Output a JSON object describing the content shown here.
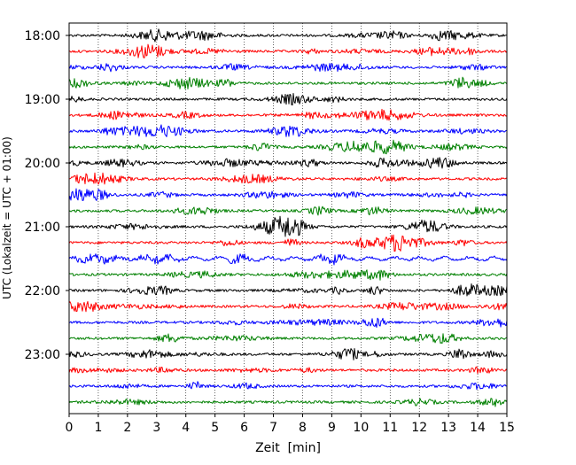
{
  "chart_data": {
    "type": "line",
    "subtype": "helicorder",
    "xlabel": "Zeit  [min]",
    "ylabel": "UTC (Lokalzeit = UTC + 01:00)",
    "xlim": [
      0,
      15
    ],
    "x_ticks": [
      "0",
      "1",
      "2",
      "3",
      "4",
      "5",
      "6",
      "7",
      "8",
      "9",
      "10",
      "11",
      "12",
      "13",
      "14",
      "15"
    ],
    "y_tick_labels": [
      "18:00",
      "19:00",
      "20:00",
      "21:00",
      "22:00",
      "23:00"
    ],
    "traces_per_hour": 4,
    "trace_count": 24,
    "trace_start_times": [
      "18:00",
      "18:15",
      "18:30",
      "18:45",
      "19:00",
      "19:15",
      "19:30",
      "19:45",
      "20:00",
      "20:15",
      "20:30",
      "20:45",
      "21:00",
      "21:15",
      "21:30",
      "21:45",
      "22:00",
      "22:15",
      "22:30",
      "22:45",
      "23:00",
      "23:15",
      "23:30",
      "23:45"
    ],
    "color_cycle": [
      "#000000",
      "#ff0000",
      "#0000ff",
      "#008000"
    ],
    "grid": {
      "x": "dotted",
      "y": "none"
    }
  }
}
